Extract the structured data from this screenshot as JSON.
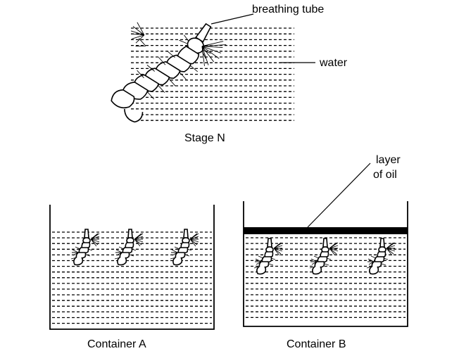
{
  "labels": {
    "breathing_tube": "breathing tube",
    "water": "water",
    "stage_n": "Stage N",
    "layer_of_oil_line1": "layer",
    "layer_of_oil_line2": "of oil",
    "container_a": "Container A",
    "container_b": "Container B"
  },
  "colors": {
    "ink": "#000000",
    "background": "#ffffff"
  }
}
